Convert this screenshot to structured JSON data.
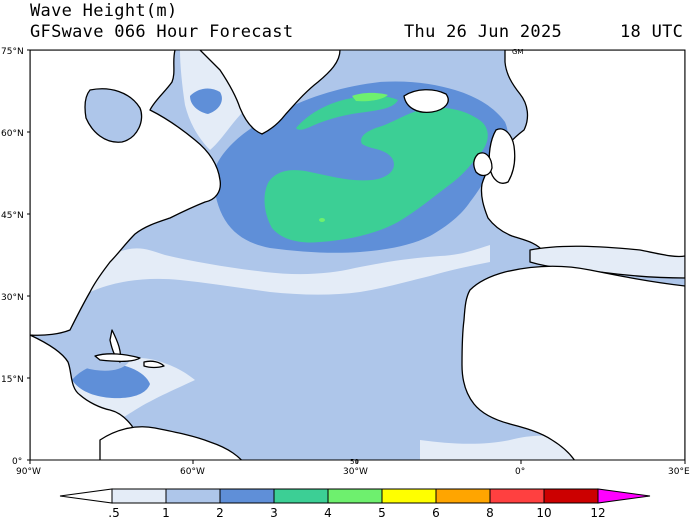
{
  "header": {
    "variable": "Wave Height(m)",
    "model": "GFSwave 066 Hour Forecast",
    "date": "Thu 26 Jun 2025",
    "time": "18 UTC"
  },
  "axes": {
    "lat_labels": [
      "75°N",
      "60°N",
      "45°N",
      "30°N",
      "15°N",
      "0°"
    ],
    "lon_labels": [
      "90°W",
      "60°W",
      "30°W",
      "0°",
      "30°E"
    ],
    "extent": {
      "lon": [
        -90,
        30
      ],
      "lat": [
        0,
        75
      ]
    }
  },
  "annotations": [
    "GM",
    "50"
  ],
  "colorbar": {
    "levels": [
      ".5",
      "1",
      "2",
      "3",
      "4",
      "5",
      "6",
      "8",
      "10",
      "12"
    ],
    "colors": [
      "#ffffff",
      "#e4ecf7",
      "#aec6ea",
      "#5f8fd8",
      "#3ccf95",
      "#6ef06e",
      "#ffff00",
      "#ffa500",
      "#ff4040",
      "#cc0000",
      "#ff00ff"
    ]
  },
  "colors": {
    "land": "#ffffff",
    "coastline": "#000000",
    "wave_0_5_1": "#e4ecf7",
    "wave_1_2": "#aec6ea",
    "wave_2_3": "#5f8fd8",
    "wave_3_4": "#3ccf95",
    "wave_4_5": "#6ef06e"
  }
}
